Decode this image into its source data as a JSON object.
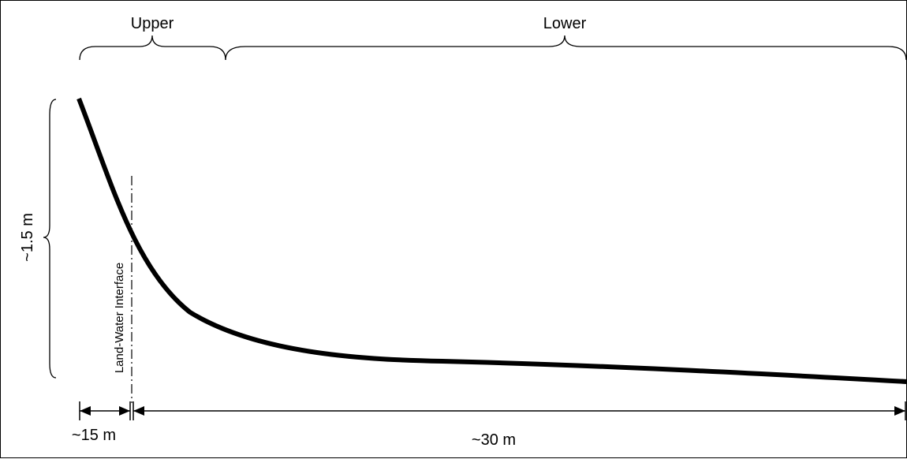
{
  "zones": {
    "upper_label": "Upper",
    "lower_label": "Lower"
  },
  "height_label": "~1.5 m",
  "interface_label": "Land-Water Interface",
  "dimensions": {
    "left_label": "~15 m",
    "right_label": "~30 m"
  },
  "colors": {
    "line": "#000000",
    "background": "#ffffff"
  }
}
